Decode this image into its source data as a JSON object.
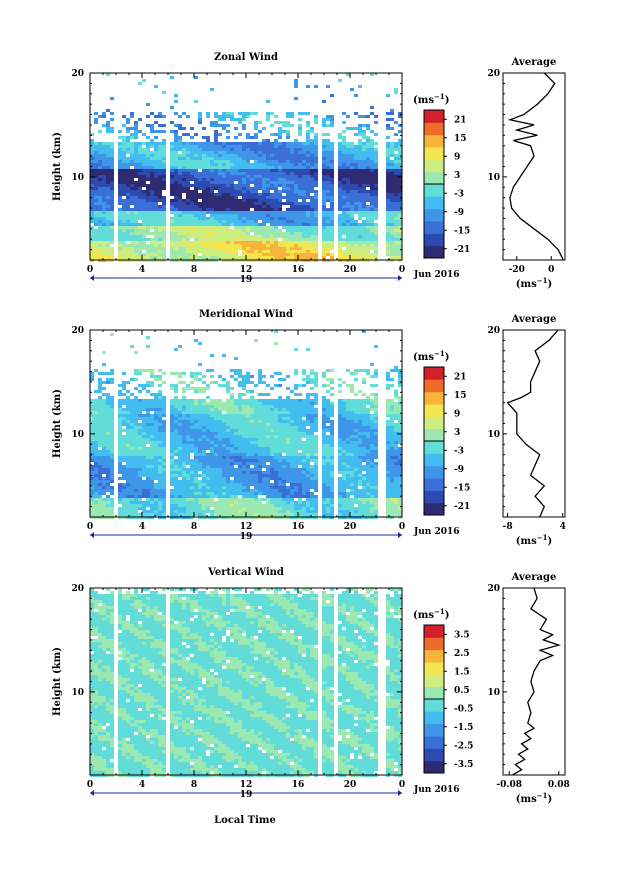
{
  "figure": {
    "xlabel": "Local Time",
    "date_label": "Jun 2016",
    "day_label": "19",
    "avg_title": "Average",
    "unit": "(ms",
    "unit_exp": "−1",
    "ylabel": "Height (km)"
  },
  "chart_data": [
    {
      "type": "heatmap",
      "title": "Zonal Wind",
      "xlabel": "Local Time",
      "ylabel": "Height (km)",
      "x_ticks": [
        "0",
        "4",
        "8",
        "12",
        "16",
        "20",
        "0"
      ],
      "xlim": [
        0,
        24
      ],
      "ylim": [
        2,
        20
      ],
      "y_ticks": [
        "20",
        "10"
      ],
      "y_tick_values": [
        20,
        10
      ],
      "colorbar": {
        "label": "(ms−1)",
        "ticks": [
          "21",
          "15",
          "9",
          "3",
          "-3",
          "-9",
          "-15",
          "-21"
        ],
        "range": [
          -24,
          24
        ]
      },
      "profile": {
        "title": "Average",
        "xlabel": "(ms−1)",
        "x_ticks": [
          "-20",
          "0"
        ],
        "x_tick_values": [
          -20,
          0
        ],
        "xlim": [
          -28,
          8
        ],
        "heights": [
          2,
          3,
          4,
          5,
          6,
          7,
          8,
          9,
          10,
          11,
          12,
          13,
          13.5,
          14,
          14.5,
          15,
          15.5,
          16,
          17,
          18,
          19,
          20
        ],
        "values": [
          7,
          4,
          -2,
          -10,
          -18,
          -23,
          -24,
          -22,
          -18,
          -14,
          -10,
          -12,
          -22,
          -8,
          -20,
          -10,
          -24,
          -16,
          -8,
          -2,
          2,
          -4
        ]
      }
    },
    {
      "type": "heatmap",
      "title": "Meridional Wind",
      "xlabel": "Local Time",
      "ylabel": "Height (km)",
      "x_ticks": [
        "0",
        "4",
        "8",
        "12",
        "16",
        "20",
        "0"
      ],
      "xlim": [
        0,
        24
      ],
      "ylim": [
        2,
        20
      ],
      "y_ticks": [
        "20",
        "10"
      ],
      "y_tick_values": [
        20,
        10
      ],
      "colorbar": {
        "label": "(ms−1)",
        "ticks": [
          "21",
          "15",
          "9",
          "3",
          "-3",
          "-9",
          "-15",
          "-21"
        ],
        "range": [
          -24,
          24
        ]
      },
      "profile": {
        "title": "Average",
        "xlabel": "(ms−1)",
        "x_ticks": [
          "-8",
          "4"
        ],
        "x_tick_values": [
          -8,
          4
        ],
        "xlim": [
          -9,
          4.5
        ],
        "heights": [
          2,
          3,
          4,
          5,
          6,
          7,
          8,
          9,
          10,
          11,
          12,
          12.5,
          13,
          13.5,
          14,
          15,
          16,
          17,
          18,
          19,
          20
        ],
        "values": [
          -1,
          0,
          -2,
          0,
          -3,
          -2,
          -1,
          -4,
          -6,
          -6,
          -6,
          -7,
          -8,
          -5,
          -3,
          -3,
          -2,
          -1,
          -2,
          1,
          3
        ]
      }
    },
    {
      "type": "heatmap",
      "title": "Vertical Wind",
      "xlabel": "Local Time",
      "ylabel": "Height (km)",
      "x_ticks": [
        "0",
        "4",
        "8",
        "12",
        "16",
        "20",
        "0"
      ],
      "xlim": [
        0,
        24
      ],
      "ylim": [
        2,
        20
      ],
      "y_ticks": [
        "20",
        "10"
      ],
      "y_tick_values": [
        20,
        10
      ],
      "colorbar": {
        "label": "(ms−1)",
        "ticks": [
          "3.5",
          "2.5",
          "1.5",
          "0.5",
          "-0.5",
          "-1.5",
          "-2.5",
          "-3.5"
        ],
        "range": [
          -4,
          4
        ]
      },
      "profile": {
        "title": "Average",
        "xlabel": "(ms−1)",
        "x_ticks": [
          "-0.08",
          "0.08"
        ],
        "x_tick_values": [
          -0.08,
          0.08
        ],
        "xlim": [
          -0.1,
          0.1
        ],
        "heights": [
          2,
          2.5,
          3,
          3.5,
          4,
          4.5,
          5,
          5.5,
          6,
          6.5,
          7,
          8,
          9,
          10,
          11,
          12,
          13,
          13.5,
          14,
          14.5,
          15,
          15.5,
          16,
          17,
          18,
          19,
          20
        ],
        "values": [
          -0.07,
          -0.04,
          -0.06,
          -0.03,
          -0.05,
          -0.02,
          -0.04,
          -0.01,
          -0.03,
          0.0,
          -0.02,
          -0.01,
          -0.02,
          0.0,
          -0.01,
          0.0,
          0.02,
          0.06,
          0.02,
          0.08,
          0.03,
          0.06,
          0.02,
          0.04,
          -0.01,
          0.01,
          0.0
        ]
      }
    }
  ]
}
